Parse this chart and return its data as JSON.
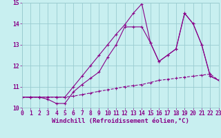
{
  "xlabel": "Windchill (Refroidissement éolien,°C)",
  "xlim": [
    0,
    23
  ],
  "ylim": [
    10,
    15
  ],
  "xticks": [
    0,
    1,
    2,
    3,
    4,
    5,
    6,
    7,
    8,
    9,
    10,
    11,
    12,
    13,
    14,
    15,
    16,
    17,
    18,
    19,
    20,
    21,
    22,
    23
  ],
  "yticks": [
    10,
    11,
    12,
    13,
    14,
    15
  ],
  "background_color": "#c8eff0",
  "grid_color": "#99ccd0",
  "line_color": "#880088",
  "line1_x": [
    0,
    1,
    2,
    3,
    4,
    5,
    6,
    7,
    8,
    9,
    10,
    11,
    12,
    13,
    14,
    15,
    16,
    17,
    18,
    19,
    20,
    21,
    22,
    23
  ],
  "line1_y": [
    10.5,
    10.5,
    10.5,
    10.5,
    10.5,
    10.5,
    10.55,
    10.62,
    10.7,
    10.78,
    10.85,
    10.92,
    11.0,
    11.05,
    11.1,
    11.2,
    11.3,
    11.35,
    11.4,
    11.45,
    11.5,
    11.55,
    11.6,
    11.3
  ],
  "line2_x": [
    0,
    1,
    2,
    3,
    4,
    5,
    6,
    7,
    8,
    9,
    10,
    11,
    12,
    13,
    14,
    15,
    16,
    17,
    18,
    19,
    20,
    21,
    22,
    23
  ],
  "line2_y": [
    10.5,
    10.5,
    10.5,
    10.4,
    10.2,
    10.2,
    10.75,
    11.1,
    11.4,
    11.7,
    12.4,
    13.0,
    13.85,
    13.85,
    13.85,
    13.1,
    12.2,
    12.5,
    12.8,
    14.5,
    14.0,
    13.0,
    11.5,
    11.3
  ],
  "line3_x": [
    0,
    1,
    2,
    3,
    4,
    5,
    6,
    7,
    8,
    9,
    10,
    11,
    12,
    13,
    14,
    15,
    16,
    17,
    18,
    19,
    20,
    21,
    22,
    23
  ],
  "line3_y": [
    10.5,
    10.5,
    10.5,
    10.5,
    10.5,
    10.5,
    11.0,
    11.5,
    12.0,
    12.5,
    13.0,
    13.5,
    13.95,
    14.5,
    14.95,
    13.1,
    12.2,
    12.5,
    12.8,
    14.5,
    14.0,
    13.0,
    11.5,
    11.3
  ],
  "font_size_label": 6.5,
  "font_size_tick": 5.8
}
